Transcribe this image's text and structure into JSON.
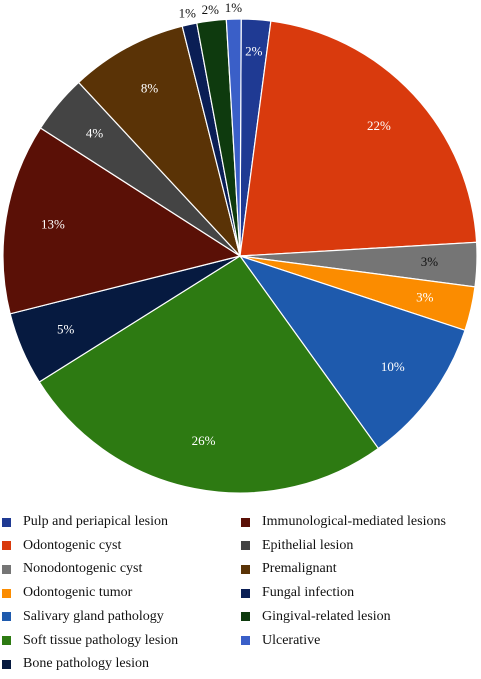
{
  "chart_data": {
    "type": "pie",
    "slices": [
      {
        "name": "Pulp and periapical lesion",
        "value": 2,
        "label": "2%",
        "color": "#1f3a93",
        "label_color": "#ffffff"
      },
      {
        "name": "Odontogenic cyst",
        "value": 22,
        "label": "22%",
        "color": "#d93a0d",
        "label_color": "#ffffff"
      },
      {
        "name": "Nonodontogenic cyst",
        "value": 3,
        "label": "3%",
        "color": "#757575",
        "label_color": "#111111"
      },
      {
        "name": "Odontogenic tumor",
        "value": 3,
        "label": "3%",
        "color": "#fb8c00",
        "label_color": "#ffffff"
      },
      {
        "name": "Salivary gland pathology",
        "value": 10,
        "label": "10%",
        "color": "#1e5aad",
        "label_color": "#ffffff"
      },
      {
        "name": "Soft tissue pathology lesion",
        "value": 26,
        "label": "26%",
        "color": "#2d7a12",
        "label_color": "#ffffff"
      },
      {
        "name": "Bone pathology lesion",
        "value": 5,
        "label": "5%",
        "color": "#061a40",
        "label_color": "#ffffff"
      },
      {
        "name": "Immunological-mediated lesions",
        "value": 13,
        "label": "13%",
        "color": "#5a1006",
        "label_color": "#ffffff"
      },
      {
        "name": "Epithelial lesion",
        "value": 4,
        "label": "4%",
        "color": "#444444",
        "label_color": "#ffffff"
      },
      {
        "name": "Premalignant",
        "value": 8,
        "label": "8%",
        "color": "#5a3306",
        "label_color": "#ffffff"
      },
      {
        "name": "Fungal infection",
        "value": 1,
        "label": "1%",
        "color": "#0a1e55",
        "label_color": "#111111"
      },
      {
        "name": "Gingival-related lesion",
        "value": 2,
        "label": "2%",
        "color": "#0e3a0e",
        "label_color": "#111111"
      },
      {
        "name": "Ulcerative",
        "value": 1,
        "label": "1%",
        "color": "#3a5fc8",
        "label_color": "#111111"
      }
    ],
    "legend": {
      "placement": "bottom",
      "columns": [
        [
          "Pulp and periapical lesion",
          "Odontogenic cyst",
          "Nonodontogenic cyst",
          "Odontogenic tumor",
          "Salivary gland pathology",
          "Soft tissue pathology lesion",
          "Bone pathology lesion"
        ],
        [
          "Immunological-mediated lesions",
          "Epithelial lesion",
          "Premalignant",
          "Fungal infection",
          "Gingival-related lesion",
          "Ulcerative"
        ]
      ]
    }
  }
}
